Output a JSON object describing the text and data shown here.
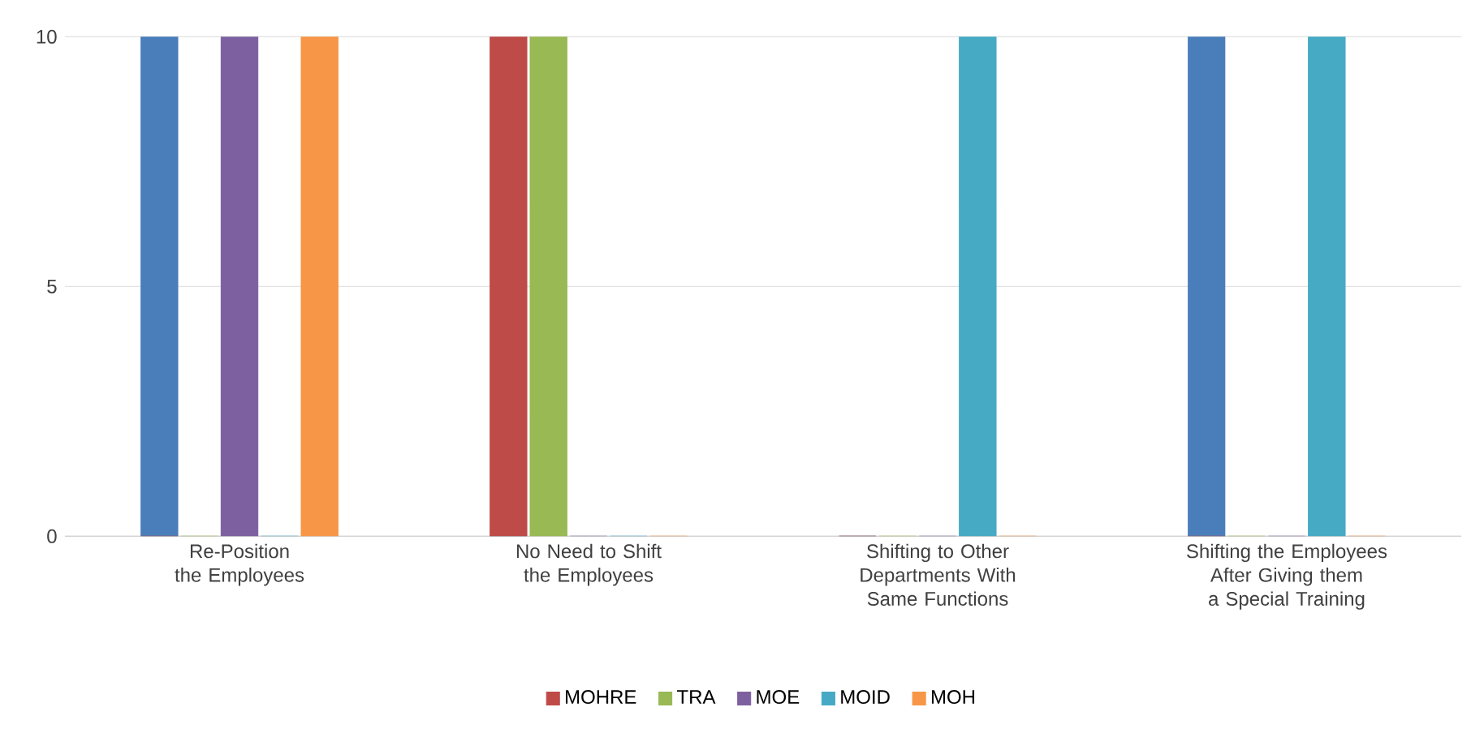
{
  "chart_data": {
    "type": "bar",
    "categories": [
      "Re-Position the Employees",
      "No Need to Shift the Employees",
      "Shifting to Other Departments With Same Functions",
      "Shifting the Employees After Giving them a Special Training"
    ],
    "series": [
      {
        "color": "#4a7ebb",
        "values": [
          10,
          0,
          0,
          10
        ]
      },
      {
        "name": "MOHRE",
        "color": "#be4b48",
        "values": [
          0,
          10,
          0,
          0
        ]
      },
      {
        "name": "TRA",
        "color": "#98b954",
        "values": [
          0,
          10,
          0,
          0
        ]
      },
      {
        "name": "MOE",
        "color": "#7d60a0",
        "values": [
          10,
          0,
          0,
          0
        ]
      },
      {
        "name": "MOID",
        "color": "#46aac5",
        "values": [
          0,
          0,
          10,
          10
        ]
      },
      {
        "name": "MOH",
        "color": "#f79646",
        "values": [
          10,
          0,
          0,
          0
        ]
      }
    ],
    "ylim": [
      0,
      10
    ],
    "yticks": [
      0,
      5,
      10
    ],
    "grid": "y",
    "legend": "bottom"
  }
}
